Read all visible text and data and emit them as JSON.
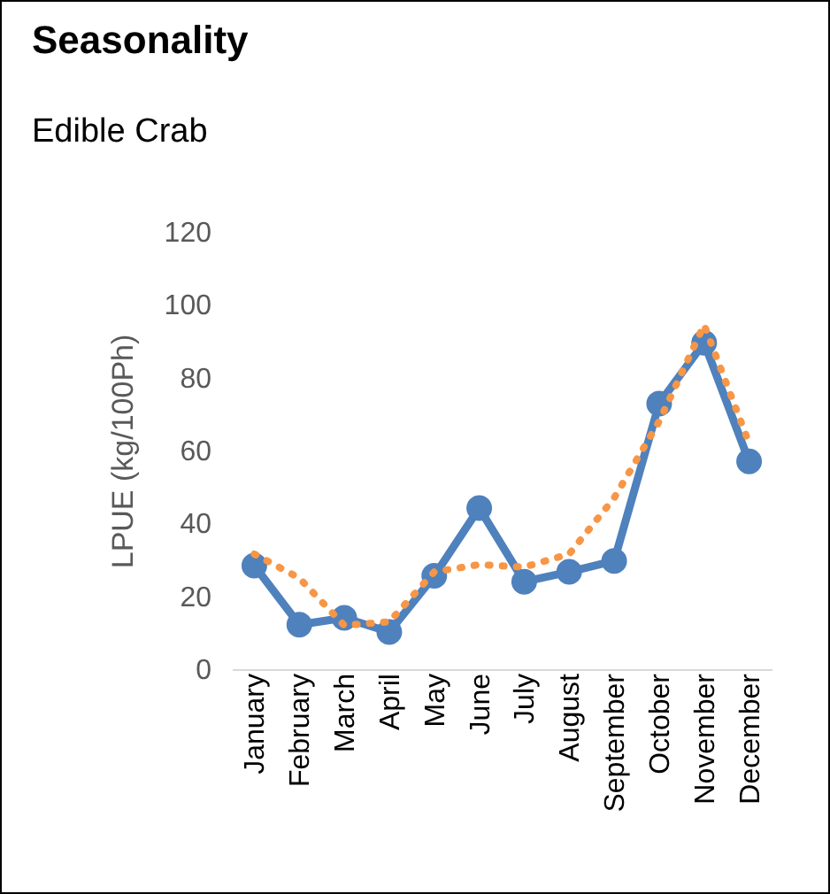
{
  "chart_data": {
    "type": "line",
    "title": "Seasonality",
    "subtitle": "Edible Crab",
    "ylabel": "LPUE (kg/100Ph)",
    "categories": [
      "January",
      "February",
      "March",
      "April",
      "May",
      "June",
      "July",
      "August",
      "September",
      "October",
      "November",
      "December"
    ],
    "ylim": [
      0,
      120
    ],
    "yticks": [
      0,
      20,
      40,
      60,
      80,
      100,
      120
    ],
    "grid": false,
    "series": [
      {
        "color": "#4f81bd",
        "marker": "circle",
        "line_style": "solid",
        "values": [
          28.4,
          12.2,
          14.1,
          10.2,
          25.6,
          44.2,
          24,
          26.7,
          29.7,
          72.9,
          89.6,
          57
        ]
      },
      {
        "color": "#f79646",
        "marker": "none",
        "line_style": "dotted",
        "values": [
          31.6,
          25,
          12,
          13,
          26.7,
          28.7,
          28,
          31.6,
          47,
          68,
          94.5,
          62
        ]
      }
    ]
  }
}
